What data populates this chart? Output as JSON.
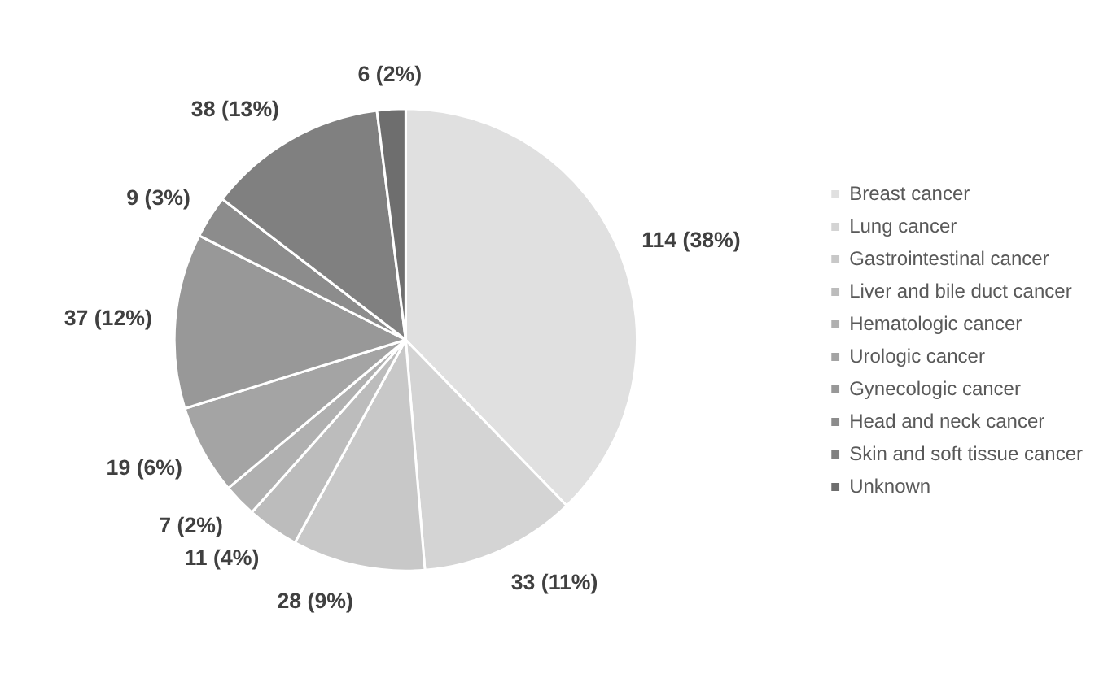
{
  "chart_data": {
    "type": "pie",
    "categories": [
      "Breast cancer",
      "Lung cancer",
      "Gastrointestinal cancer",
      "Liver and bile duct cancer",
      "Hematologic cancer",
      "Urologic cancer",
      "Gynecologic cancer",
      "Head and neck cancer",
      "Skin and soft tissue cancer",
      "Unknown"
    ],
    "values": [
      114,
      33,
      28,
      11,
      7,
      19,
      37,
      9,
      38,
      6
    ],
    "value_labels": [
      "114 (38%)",
      "33 (11%)",
      "28 (9%)",
      "11 (4%)",
      "7 (2%)",
      "19 (6%)",
      "37 (12%)",
      "9 (3%)",
      "38 (13%)",
      "6 (2%)"
    ],
    "colors": [
      "#e0e0e0",
      "#d4d4d4",
      "#c8c8c8",
      "#bcbcbc",
      "#b0b0b0",
      "#a4a4a4",
      "#989898",
      "#8c8c8c",
      "#808080",
      "#6e6e6e"
    ],
    "legend": "right"
  }
}
